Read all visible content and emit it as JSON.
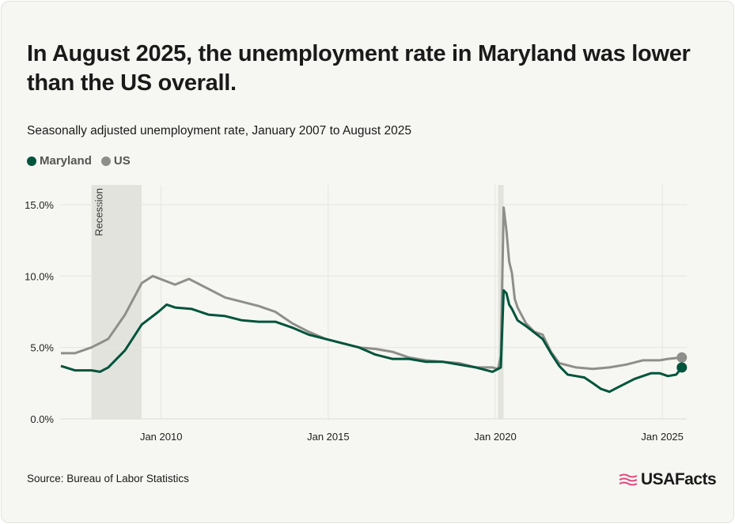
{
  "title": "In August 2025, the unemployment rate in Maryland was lower than the US overall.",
  "subtitle": "Seasonally adjusted unemployment rate, January 2007 to August 2025",
  "source": "Source: Bureau of Labor Statistics",
  "logo_text": "USAFacts",
  "chart_data": {
    "type": "line",
    "title": "In August 2025, the unemployment rate in Maryland was lower than the US overall.",
    "subtitle": "Seasonally adjusted unemployment rate, January 2007 to August 2025",
    "ylim": [
      0,
      16
    ],
    "yticks": [
      0,
      5,
      10,
      15
    ],
    "ytick_labels": [
      "0.0%",
      "5.0%",
      "10.0%",
      "15.0%"
    ],
    "xlim": [
      "2007-01",
      "2025-08"
    ],
    "xticks": [
      "2010-01",
      "2015-01",
      "2020-01",
      "2025-01"
    ],
    "xtick_labels": [
      "Jan 2010",
      "Jan 2015",
      "Jan 2020",
      "Jan 2025"
    ],
    "grid": true,
    "legend_position": "top-left",
    "recessions": [
      {
        "start": "2007-12",
        "end": "2009-06",
        "label": "Recession"
      },
      {
        "start": "2020-02",
        "end": "2020-04",
        "label": ""
      }
    ],
    "series": [
      {
        "name": "Maryland",
        "color": "#00543c",
        "points": [
          [
            "2007-01",
            3.7
          ],
          [
            "2007-06",
            3.4
          ],
          [
            "2007-12",
            3.4
          ],
          [
            "2008-03",
            3.3
          ],
          [
            "2008-06",
            3.6
          ],
          [
            "2008-12",
            4.8
          ],
          [
            "2009-06",
            6.6
          ],
          [
            "2009-12",
            7.5
          ],
          [
            "2010-03",
            8.0
          ],
          [
            "2010-06",
            7.8
          ],
          [
            "2010-12",
            7.7
          ],
          [
            "2011-06",
            7.3
          ],
          [
            "2011-12",
            7.2
          ],
          [
            "2012-06",
            6.9
          ],
          [
            "2012-12",
            6.8
          ],
          [
            "2013-06",
            6.8
          ],
          [
            "2013-12",
            6.4
          ],
          [
            "2014-06",
            5.9
          ],
          [
            "2014-12",
            5.6
          ],
          [
            "2015-06",
            5.3
          ],
          [
            "2015-12",
            5.0
          ],
          [
            "2016-06",
            4.5
          ],
          [
            "2016-12",
            4.2
          ],
          [
            "2017-06",
            4.2
          ],
          [
            "2017-12",
            4.0
          ],
          [
            "2018-06",
            4.0
          ],
          [
            "2018-12",
            3.8
          ],
          [
            "2019-06",
            3.6
          ],
          [
            "2019-12",
            3.3
          ],
          [
            "2020-02",
            3.5
          ],
          [
            "2020-03",
            3.6
          ],
          [
            "2020-04",
            9.0
          ],
          [
            "2020-05",
            8.8
          ],
          [
            "2020-06",
            8.0
          ],
          [
            "2020-07",
            7.7
          ],
          [
            "2020-09",
            6.9
          ],
          [
            "2020-12",
            6.5
          ],
          [
            "2021-06",
            5.6
          ],
          [
            "2021-09",
            4.6
          ],
          [
            "2021-12",
            3.7
          ],
          [
            "2022-03",
            3.1
          ],
          [
            "2022-06",
            3.0
          ],
          [
            "2022-09",
            2.9
          ],
          [
            "2022-12",
            2.5
          ],
          [
            "2023-03",
            2.1
          ],
          [
            "2023-06",
            1.9
          ],
          [
            "2023-09",
            2.2
          ],
          [
            "2023-12",
            2.5
          ],
          [
            "2024-03",
            2.8
          ],
          [
            "2024-06",
            3.0
          ],
          [
            "2024-09",
            3.2
          ],
          [
            "2024-12",
            3.2
          ],
          [
            "2025-03",
            3.0
          ],
          [
            "2025-06",
            3.1
          ],
          [
            "2025-08",
            3.6
          ]
        ]
      },
      {
        "name": "US",
        "color": "#8e8e8a",
        "points": [
          [
            "2007-01",
            4.6
          ],
          [
            "2007-06",
            4.6
          ],
          [
            "2007-12",
            5.0
          ],
          [
            "2008-06",
            5.6
          ],
          [
            "2008-12",
            7.3
          ],
          [
            "2009-06",
            9.5
          ],
          [
            "2009-10",
            10.0
          ],
          [
            "2010-06",
            9.4
          ],
          [
            "2010-11",
            9.8
          ],
          [
            "2011-06",
            9.1
          ],
          [
            "2011-12",
            8.5
          ],
          [
            "2012-06",
            8.2
          ],
          [
            "2012-12",
            7.9
          ],
          [
            "2013-06",
            7.5
          ],
          [
            "2013-12",
            6.7
          ],
          [
            "2014-06",
            6.1
          ],
          [
            "2014-12",
            5.6
          ],
          [
            "2015-06",
            5.3
          ],
          [
            "2015-12",
            5.0
          ],
          [
            "2016-06",
            4.9
          ],
          [
            "2016-12",
            4.7
          ],
          [
            "2017-06",
            4.3
          ],
          [
            "2017-12",
            4.1
          ],
          [
            "2018-06",
            4.0
          ],
          [
            "2018-12",
            3.9
          ],
          [
            "2019-06",
            3.6
          ],
          [
            "2019-12",
            3.6
          ],
          [
            "2020-02",
            3.5
          ],
          [
            "2020-03",
            4.4
          ],
          [
            "2020-04",
            14.8
          ],
          [
            "2020-05",
            13.2
          ],
          [
            "2020-06",
            11.0
          ],
          [
            "2020-07",
            10.2
          ],
          [
            "2020-08",
            8.4
          ],
          [
            "2020-09",
            7.8
          ],
          [
            "2020-12",
            6.7
          ],
          [
            "2021-03",
            6.1
          ],
          [
            "2021-06",
            5.9
          ],
          [
            "2021-09",
            4.7
          ],
          [
            "2021-12",
            3.9
          ],
          [
            "2022-06",
            3.6
          ],
          [
            "2022-12",
            3.5
          ],
          [
            "2023-06",
            3.6
          ],
          [
            "2023-12",
            3.8
          ],
          [
            "2024-06",
            4.1
          ],
          [
            "2024-12",
            4.1
          ],
          [
            "2025-03",
            4.2
          ],
          [
            "2025-08",
            4.3
          ]
        ]
      }
    ]
  }
}
